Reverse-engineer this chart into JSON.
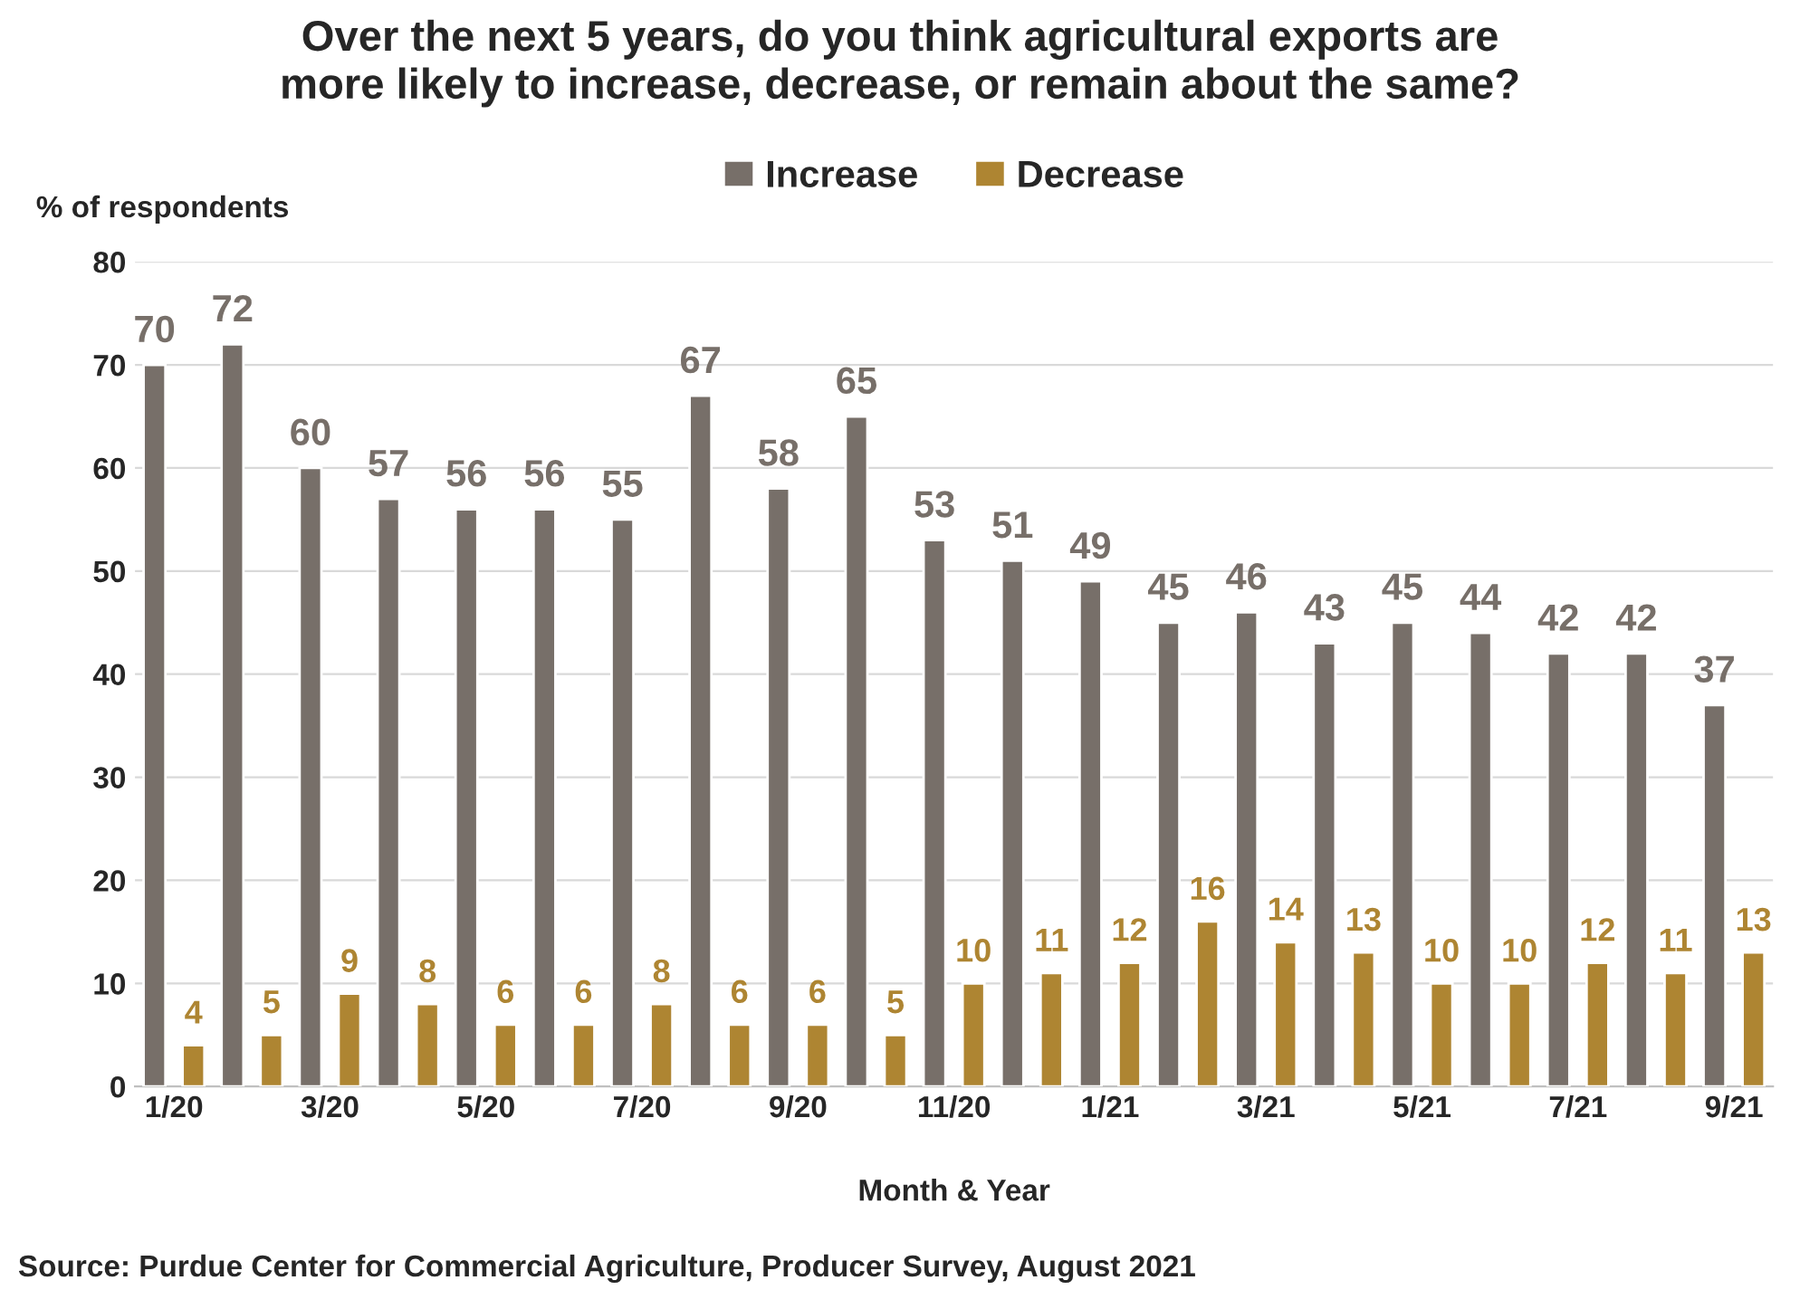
{
  "chart_data": {
    "type": "bar",
    "title": "Over the next 5 years, do you think agricultural exports are\nmore likely to increase, decrease, or remain about the same?",
    "ylabel": "% of respondents",
    "xlabel": "Month & Year",
    "categories": [
      "1/20",
      null,
      "3/20",
      null,
      "5/20",
      null,
      "7/20",
      null,
      "9/20",
      null,
      "11/20",
      null,
      "1/21",
      null,
      "3/21",
      null,
      "5/21",
      null,
      "7/21",
      null,
      "9/21"
    ],
    "series": [
      {
        "name": "Increase",
        "color": "#776f69",
        "values": [
          70,
          72,
          60,
          57,
          56,
          56,
          55,
          67,
          58,
          65,
          53,
          51,
          49,
          45,
          46,
          43,
          45,
          44,
          42,
          42,
          37
        ]
      },
      {
        "name": "Decrease",
        "color": "#ae8532",
        "values": [
          4,
          5,
          9,
          8,
          6,
          6,
          8,
          6,
          6,
          5,
          10,
          11,
          12,
          16,
          14,
          13,
          10,
          10,
          12,
          11,
          13
        ]
      }
    ],
    "ylim": [
      0,
      80
    ],
    "yticks": [
      0,
      10,
      20,
      30,
      40,
      50,
      60,
      70,
      80
    ],
    "grid": "y",
    "legend": "top",
    "data_labels": true,
    "annotations": [
      "Source: Purdue Center for Commercial Agriculture, Producer Survey, August 2021"
    ]
  }
}
